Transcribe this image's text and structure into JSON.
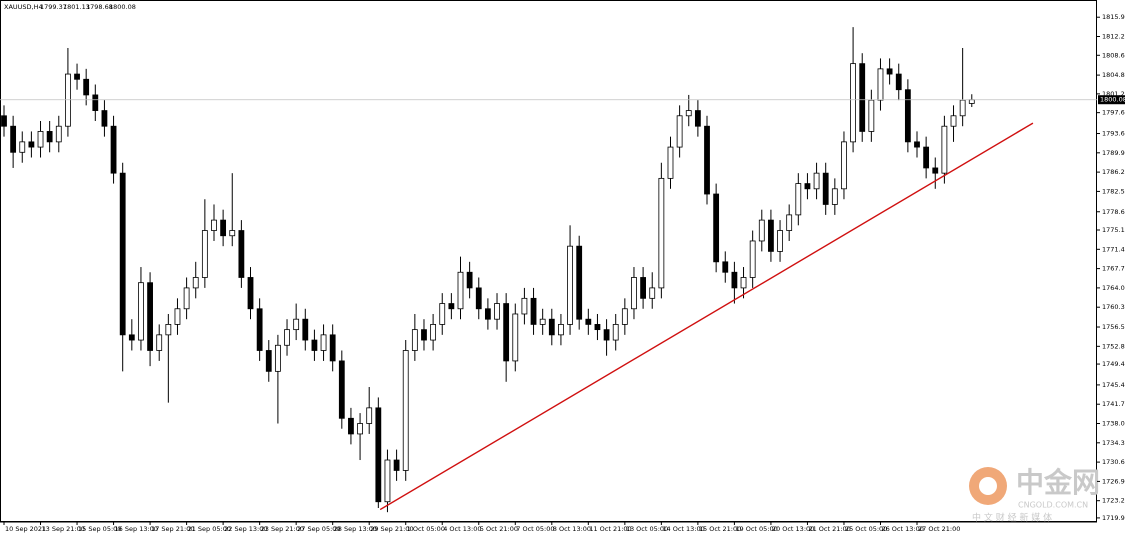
{
  "chart_data": {
    "type": "candlestick",
    "title": "XAUUSD,H4",
    "categories": [
      "10 Sep 2021",
      null,
      null,
      null,
      "13 Sep 21:00",
      null,
      null,
      null,
      "15 Sep 05:00",
      null,
      null,
      null,
      "16 Sep 13:00",
      null,
      null,
      null,
      "17 Sep 21:00",
      null,
      null,
      null,
      "21 Sep 05:00",
      null,
      null,
      null,
      "22 Sep 13:00",
      null,
      null,
      null,
      "23 Sep 21:00",
      null,
      null,
      null,
      "27 Sep 05:00",
      null,
      null,
      null,
      "28 Sep 13:00",
      null,
      null,
      null,
      "29 Sep 21:00",
      null,
      null,
      null,
      "1 Oct 05:00",
      null,
      null,
      null,
      "4 Oct 13:00",
      null,
      null,
      null,
      "5 Oct 21:00",
      null,
      null,
      null,
      "7 Oct 05:00",
      null,
      null,
      null,
      "8 Oct 13:00",
      null,
      null,
      null,
      "11 Oct 21:00",
      null,
      null,
      null,
      "13 Oct 05:00",
      null,
      null,
      null,
      "14 Oct 13:00",
      null,
      null,
      null,
      "15 Oct 21:00",
      null,
      null,
      null,
      "19 Oct 05:00",
      null,
      null,
      null,
      "20 Oct 13:00",
      null,
      null,
      null,
      "21 Oct 21:00",
      null,
      null,
      null,
      "25 Oct 05:00",
      null,
      null,
      null,
      "26 Oct 13:00",
      null,
      null,
      null,
      "27 Oct 21:00",
      null,
      null,
      null,
      null,
      null,
      null
    ],
    "open": [
      1797,
      1795,
      1790,
      1792,
      1791,
      1794,
      1792,
      1795,
      1805,
      1804,
      1801,
      1798,
      1795,
      1786,
      1755,
      1754,
      1765,
      1752,
      1755,
      1757,
      1760,
      1764,
      1766,
      1775,
      1777,
      1774,
      1775,
      1766,
      1760,
      1752,
      1748,
      1753,
      1756,
      1758,
      1754,
      1752,
      1755,
      1750,
      1739,
      1736,
      1738,
      1741,
      1723,
      1731,
      1729,
      1752,
      1756,
      1754,
      1757,
      1761,
      1760,
      1767,
      1764,
      1760,
      1758,
      1761,
      1750,
      1759,
      1762,
      1757,
      1758,
      1755,
      1757,
      1772,
      1758,
      1757,
      1756,
      1754,
      1757,
      1760,
      1766,
      1762,
      1764,
      1785,
      1791,
      1797,
      1798,
      1795,
      1782,
      1769,
      1767,
      1764,
      1766,
      1773,
      1777,
      1771,
      1775,
      1778,
      1784,
      1783,
      1786,
      1780,
      1783,
      1792,
      1807,
      1794,
      1800,
      1806,
      1805,
      1802,
      1792,
      1791,
      1787,
      1786,
      1795,
      1797,
      1799.37
    ],
    "high": [
      1799,
      1797,
      1794,
      1794,
      1796,
      1796,
      1797,
      1810,
      1807,
      1806,
      1803,
      1800,
      1797,
      1788,
      1758,
      1768,
      1767,
      1757,
      1759,
      1762,
      1766,
      1769,
      1781,
      1780,
      1779,
      1786,
      1777,
      1768,
      1762,
      1754,
      1755,
      1758,
      1761,
      1760,
      1756,
      1757,
      1757,
      1752,
      1741,
      1740,
      1745,
      1743,
      1733,
      1733,
      1754,
      1759,
      1758,
      1759,
      1763,
      1763,
      1770,
      1769,
      1766,
      1762,
      1763,
      1763,
      1761,
      1764,
      1764,
      1760,
      1760,
      1759,
      1776,
      1774,
      1760,
      1759,
      1758,
      1759,
      1762,
      1768,
      1768,
      1767,
      1788,
      1793,
      1799,
      1801,
      1800,
      1797,
      1784,
      1771,
      1769,
      1768,
      1775,
      1779,
      1779,
      1777,
      1780,
      1786,
      1786,
      1788,
      1788,
      1785,
      1794,
      1814,
      1809,
      1802,
      1808,
      1808,
      1807,
      1804,
      1794,
      1793,
      1789,
      1797,
      1799,
      1810,
      1801.13
    ],
    "low": [
      1793,
      1787,
      1788,
      1789,
      1789,
      1790,
      1790,
      1793,
      1802,
      1799,
      1796,
      1793,
      1784,
      1748,
      1752,
      1752,
      1749,
      1750,
      1742,
      1755,
      1758,
      1762,
      1764,
      1773,
      1772,
      1772,
      1764,
      1758,
      1750,
      1746,
      1738,
      1751,
      1754,
      1752,
      1750,
      1750,
      1748,
      1737,
      1734,
      1731,
      1736,
      1721.8,
      1721,
      1727,
      1727,
      1750,
      1752,
      1752,
      1755,
      1758,
      1758,
      1762,
      1758,
      1756,
      1756,
      1746,
      1748,
      1757,
      1755,
      1755,
      1753,
      1753,
      1755,
      1756,
      1755,
      1754,
      1751,
      1752,
      1755,
      1758,
      1760,
      1760,
      1762,
      1783,
      1789,
      1795,
      1793,
      1780,
      1767,
      1765,
      1761,
      1762,
      1764,
      1771,
      1769,
      1769,
      1773,
      1776,
      1781,
      1781,
      1778,
      1778,
      1781,
      1790,
      1792,
      1792,
      1798,
      1803,
      1800,
      1790,
      1789,
      1785,
      1783,
      1784,
      1792,
      1795,
      1798.68
    ],
    "close": [
      1795,
      1790,
      1792,
      1791,
      1794,
      1792,
      1795,
      1805,
      1804,
      1801,
      1798,
      1795,
      1786,
      1755,
      1754,
      1765,
      1752,
      1755,
      1757,
      1760,
      1764,
      1766,
      1775,
      1777,
      1774,
      1775,
      1766,
      1760,
      1752,
      1748,
      1753,
      1756,
      1758,
      1754,
      1752,
      1755,
      1750,
      1739,
      1736,
      1738,
      1741,
      1723,
      1731,
      1729,
      1752,
      1756,
      1754,
      1757,
      1761,
      1760,
      1767,
      1764,
      1760,
      1758,
      1761,
      1750,
      1759,
      1762,
      1757,
      1758,
      1755,
      1757,
      1772,
      1758,
      1757,
      1756,
      1754,
      1757,
      1760,
      1766,
      1762,
      1764,
      1785,
      1791,
      1797,
      1798,
      1795,
      1782,
      1769,
      1767,
      1764,
      1766,
      1773,
      1777,
      1771,
      1775,
      1778,
      1784,
      1783,
      1786,
      1780,
      1783,
      1792,
      1807,
      1794,
      1800,
      1806,
      1805,
      1802,
      1792,
      1791,
      1787,
      1786,
      1795,
      1797,
      1800,
      1800.08
    ],
    "up_color": "#ffffff",
    "down_color": "#000000",
    "wick_color": "#000000",
    "ylim": [
      1719.5,
      1819.2
    ],
    "yticks": [
      {
        "value": 1815.9,
        "label": "1815.90"
      },
      {
        "value": 1812.2,
        "label": "1812.20"
      },
      {
        "value": 1808.6,
        "label": "1808.60"
      },
      {
        "value": 1804.8,
        "label": "1804.80"
      },
      {
        "value": 1801.2,
        "label": "1801.20"
      },
      {
        "value": 1797.6,
        "label": "1797.60"
      },
      {
        "value": 1793.6,
        "label": "1793.60"
      },
      {
        "value": 1789.9,
        "label": "1789.90"
      },
      {
        "value": 1786.2,
        "label": "1786.20"
      },
      {
        "value": 1782.5,
        "label": "1782.50"
      },
      {
        "value": 1778.6,
        "label": "1778.60"
      },
      {
        "value": 1775.1,
        "label": "1775.10"
      },
      {
        "value": 1771.4,
        "label": "1771.40"
      },
      {
        "value": 1767.7,
        "label": "1767.70"
      },
      {
        "value": 1764,
        "label": "1764.00"
      },
      {
        "value": 1760.3,
        "label": "1760.30"
      },
      {
        "value": 1756.5,
        "label": "1756.50"
      },
      {
        "value": 1752.8,
        "label": "1752.80"
      },
      {
        "value": 1749.4,
        "label": "1749.40"
      },
      {
        "value": 1745.4,
        "label": "1745.40"
      },
      {
        "value": 1741.7,
        "label": "1741.70"
      },
      {
        "value": 1738,
        "label": "1738.00"
      },
      {
        "value": 1734.3,
        "label": "1734.30"
      },
      {
        "value": 1730.6,
        "label": "1730.60"
      },
      {
        "value": 1726.9,
        "label": "1726.90"
      },
      {
        "value": 1723.2,
        "label": "1723.20"
      },
      {
        "value": 1719.9,
        "label": "1719.90"
      }
    ],
    "grid": false,
    "price_line_color": "#c0c0c0",
    "trendline": {
      "color": "#d01010",
      "start": [
        41.2,
        1721.5
      ],
      "end": [
        112.7,
        1795.6
      ]
    },
    "watermark": {
      "name": "中金网",
      "domain": "CNGOLD.COM.CN",
      "slogan": "中 文 财 经 新 媒 体"
    }
  }
}
